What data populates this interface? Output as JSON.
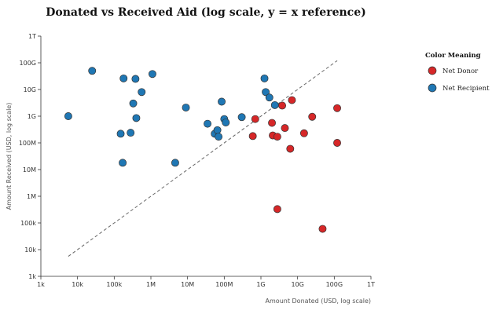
{
  "chart_data": {
    "type": "scatter",
    "title": "Donated vs Received Aid (log scale, y = x reference)",
    "xlabel": "Amount Donated (USD, log scale)",
    "ylabel": "Amount Received (USD, log scale)",
    "xscale": "log",
    "yscale": "log",
    "xlim": [
      1000,
      1000000000000
    ],
    "ylim": [
      1000,
      1000000000000
    ],
    "ticks": [
      {
        "value": 1000,
        "label": "1k"
      },
      {
        "value": 10000,
        "label": "10k"
      },
      {
        "value": 100000,
        "label": "100k"
      },
      {
        "value": 1000000,
        "label": "1M"
      },
      {
        "value": 10000000,
        "label": "10M"
      },
      {
        "value": 100000000,
        "label": "100M"
      },
      {
        "value": 1000000000,
        "label": "1G"
      },
      {
        "value": 10000000000,
        "label": "10G"
      },
      {
        "value": 100000000000,
        "label": "100G"
      },
      {
        "value": 1000000000000,
        "label": "1T"
      }
    ],
    "reference_line": {
      "label": "y = x",
      "from": 5600,
      "to": 120000000000
    },
    "legend": {
      "title": "Color Meaning",
      "items": [
        {
          "name": "Net Donor",
          "color": "#d62728"
        },
        {
          "name": "Net Recipient",
          "color": "#1f77b4"
        }
      ]
    },
    "series": [
      {
        "name": "Net Recipient",
        "color": "#1f77b4",
        "points": [
          [
            5600,
            1000000000
          ],
          [
            25000,
            50000000000
          ],
          [
            150000,
            220000000
          ],
          [
            170000,
            18000000
          ],
          [
            180000,
            26000000000
          ],
          [
            280000,
            240000000
          ],
          [
            330000,
            3000000000
          ],
          [
            380000,
            25000000000
          ],
          [
            400000,
            850000000
          ],
          [
            560000,
            8000000000
          ],
          [
            1100000,
            38000000000
          ],
          [
            4600000,
            18000000
          ],
          [
            9000000,
            2100000000
          ],
          [
            35000000,
            520000000
          ],
          [
            55000000,
            220000000
          ],
          [
            65000000,
            300000000
          ],
          [
            70000000,
            170000000
          ],
          [
            85000000,
            3500000000
          ],
          [
            100000000,
            780000000
          ],
          [
            110000000,
            580000000
          ],
          [
            300000000,
            920000000
          ],
          [
            1250000000,
            26000000000
          ],
          [
            1350000000,
            8000000000
          ],
          [
            1700000000,
            5000000000
          ],
          [
            2400000000,
            2600000000
          ]
        ]
      },
      {
        "name": "Net Donor",
        "color": "#d62728",
        "points": [
          [
            600000000,
            180000000
          ],
          [
            700000000,
            780000000
          ],
          [
            2000000000,
            560000000
          ],
          [
            2100000000,
            190000000
          ],
          [
            2800000000,
            170000000
          ],
          [
            2800000000,
            330000
          ],
          [
            3800000000,
            2500000000
          ],
          [
            4500000000,
            360000000
          ],
          [
            6300000000,
            60000000
          ],
          [
            7000000000,
            4000000000
          ],
          [
            15000000000,
            230000000
          ],
          [
            25000000000,
            950000000
          ],
          [
            48000000000,
            60000
          ],
          [
            120000000000,
            2000000000
          ],
          [
            120000000000,
            100000000
          ]
        ]
      }
    ]
  }
}
